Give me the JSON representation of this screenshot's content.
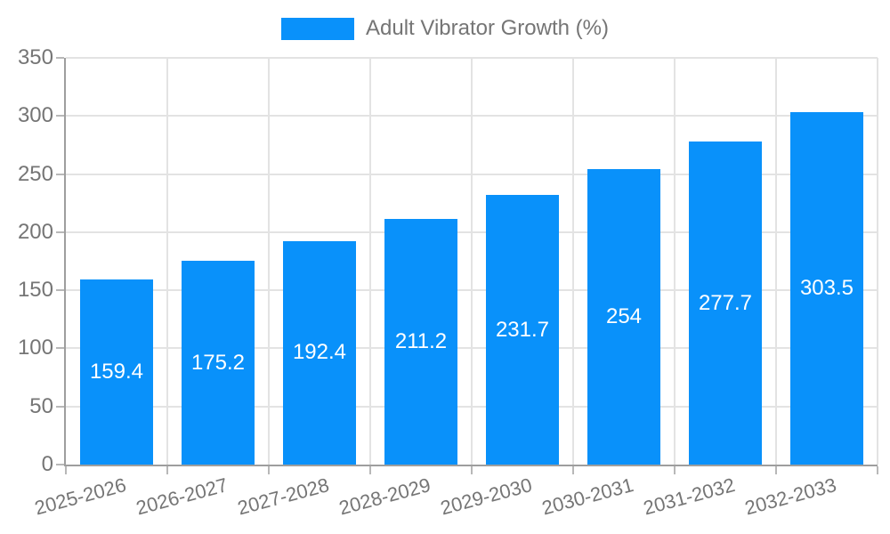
{
  "chart_data": {
    "type": "bar",
    "title": "",
    "series_name": "Adult Vibrator Growth (%)",
    "categories": [
      "2025-2026",
      "2026-2027",
      "2027-2028",
      "2028-2029",
      "2029-2030",
      "2030-2031",
      "2031-2032",
      "2032-2033"
    ],
    "values": [
      159.4,
      175.2,
      192.4,
      211.2,
      231.7,
      254,
      277.7,
      303.5
    ],
    "ylim": [
      0,
      350
    ],
    "yticks": [
      0,
      50,
      100,
      150,
      200,
      250,
      300,
      350
    ],
    "grid": true,
    "legend_position": "top",
    "x_label_rotation_deg": -15,
    "bar_color": "#0991fa",
    "grid_color": "#e3e3e3",
    "axis_color": "#9e9e9e",
    "tick_mark_color": "#b8b8b8",
    "tick_label_color": "#757575",
    "value_label_color": "#ffffff"
  }
}
